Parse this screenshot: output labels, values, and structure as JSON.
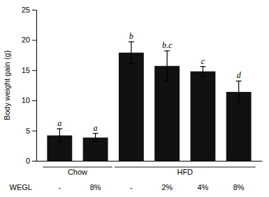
{
  "chart_data": {
    "type": "bar",
    "categories": [
      "-",
      "8%",
      "-",
      "2%",
      "4%",
      "8%"
    ],
    "groups": [
      "Chow",
      "Chow",
      "HFD",
      "HFD",
      "HFD",
      "HFD"
    ],
    "values": [
      4.2,
      3.85,
      17.9,
      15.7,
      14.8,
      11.4
    ],
    "errors": [
      1.1,
      0.7,
      1.8,
      2.5,
      0.8,
      1.8
    ],
    "annotations": [
      "a",
      "a",
      "b",
      "b.c",
      "c",
      "d"
    ],
    "color": "#111111",
    "xlabel": "WEGL",
    "ylabel": "Body weight gain (g)",
    "ylim": [
      0,
      25
    ],
    "yticks": [
      0,
      5,
      10,
      15,
      20,
      25
    ],
    "grid": false
  }
}
